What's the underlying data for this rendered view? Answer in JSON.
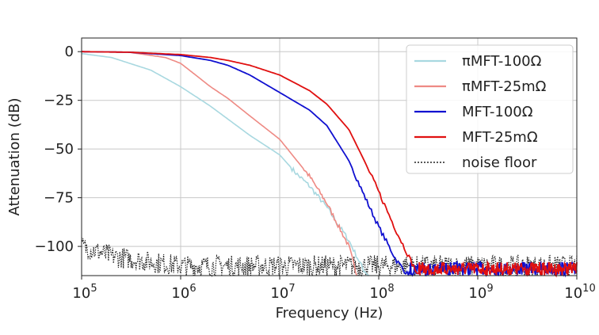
{
  "chart_data": {
    "type": "line",
    "xlabel": "Frequency (Hz)",
    "ylabel": "Attenuation (dB)",
    "xscale": "log",
    "xlim": [
      100000,
      10000000000
    ],
    "ylim": [
      -115,
      7
    ],
    "grid": true,
    "legend_position": "top-right",
    "x_ticks": [
      {
        "value": 100000,
        "base": "10",
        "exp": "5"
      },
      {
        "value": 1000000,
        "base": "10",
        "exp": "6"
      },
      {
        "value": 10000000,
        "base": "10",
        "exp": "7"
      },
      {
        "value": 100000000,
        "base": "10",
        "exp": "8"
      },
      {
        "value": 1000000000,
        "base": "10",
        "exp": "9"
      },
      {
        "value": 10000000000,
        "base": "10",
        "exp": "10"
      }
    ],
    "y_ticks": [
      {
        "value": 0,
        "label": "0"
      },
      {
        "value": -25,
        "label": "−25"
      },
      {
        "value": -50,
        "label": "−50"
      },
      {
        "value": -75,
        "label": "−75"
      },
      {
        "value": -100,
        "label": "−100"
      }
    ],
    "series": [
      {
        "name": "πMFT-100Ω",
        "color": "#a8d8e0",
        "style": "solid",
        "x": [
          100000,
          200000,
          500000,
          1000000,
          2000000,
          5000000,
          10000000,
          15000000,
          20000000,
          30000000,
          50000000,
          70000000,
          80000000
        ],
        "y": [
          -1,
          -3,
          -9.5,
          -18,
          -28,
          -43,
          -53,
          -63,
          -69,
          -80,
          -97,
          -112,
          -115
        ]
      },
      {
        "name": "πMFT-25mΩ",
        "color": "#ee8a84",
        "style": "solid",
        "x": [
          100000,
          300000,
          700000,
          1000000,
          1500000,
          2000000,
          3000000,
          5000000,
          10000000,
          20000000,
          30000000,
          50000000,
          60000000
        ],
        "y": [
          0,
          -0.3,
          -3,
          -6,
          -13,
          -18,
          -24,
          -33,
          -45,
          -64,
          -78,
          -100,
          -115
        ]
      },
      {
        "name": "MFT-100Ω",
        "color": "#1010d0",
        "style": "solid",
        "x": [
          100000,
          300000,
          1000000,
          2000000,
          3000000,
          5000000,
          10000000,
          20000000,
          30000000,
          50000000,
          70000000,
          100000000,
          150000000,
          200000000
        ],
        "y": [
          0,
          -0.3,
          -2,
          -4.5,
          -7,
          -12,
          -21,
          -30,
          -38,
          -56,
          -73,
          -90,
          -107,
          -115
        ]
      },
      {
        "name": "MFT-25mΩ",
        "color": "#e01010",
        "style": "solid",
        "x": [
          100000,
          300000,
          1000000,
          2000000,
          3000000,
          5000000,
          10000000,
          20000000,
          30000000,
          50000000,
          70000000,
          100000000,
          150000000,
          200000000,
          250000000
        ],
        "y": [
          0,
          -0.3,
          -1.5,
          -3,
          -4.5,
          -7,
          -12,
          -20,
          -27,
          -40,
          -55,
          -72,
          -92,
          -105,
          -115
        ]
      },
      {
        "name": "noise floor",
        "color": "#222222",
        "style": "dotted",
        "x": [
          100000,
          200000,
          500000,
          1000000,
          3000000,
          10000000,
          30000000,
          100000000,
          1000000000,
          10000000000
        ],
        "y": [
          -100,
          -105,
          -108,
          -110,
          -110,
          -110,
          -110,
          -110,
          -110,
          -110
        ]
      }
    ]
  }
}
